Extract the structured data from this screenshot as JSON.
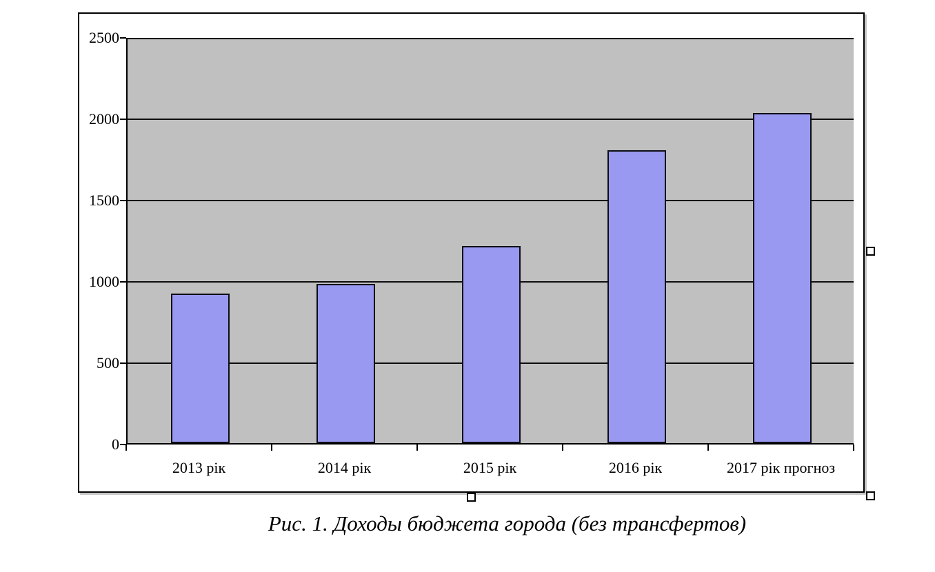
{
  "figure": {
    "caption": "Рис. 1. Доходы бюджета города (без трансфертов)"
  },
  "chart_data": {
    "type": "bar",
    "title": "",
    "categories": [
      "2013 рік",
      "2014 рік",
      "2015 рік",
      "2016 рік",
      "2017 рік прогноз"
    ],
    "values": [
      920,
      980,
      1210,
      1800,
      2030
    ],
    "xlabel": "",
    "ylabel": "",
    "ylim": [
      0,
      2500
    ],
    "yticks": [
      0,
      500,
      1000,
      1500,
      2000,
      2500
    ],
    "grid": true,
    "legend_position": "none",
    "plot_background": "#c0c0c0",
    "bar_fill": "#9999f2",
    "bar_border": "#0d0d14",
    "gridline_color": "#0d0d0d"
  },
  "selection": {
    "handles": [
      "right-middle",
      "bottom-center",
      "bottom-right"
    ]
  }
}
